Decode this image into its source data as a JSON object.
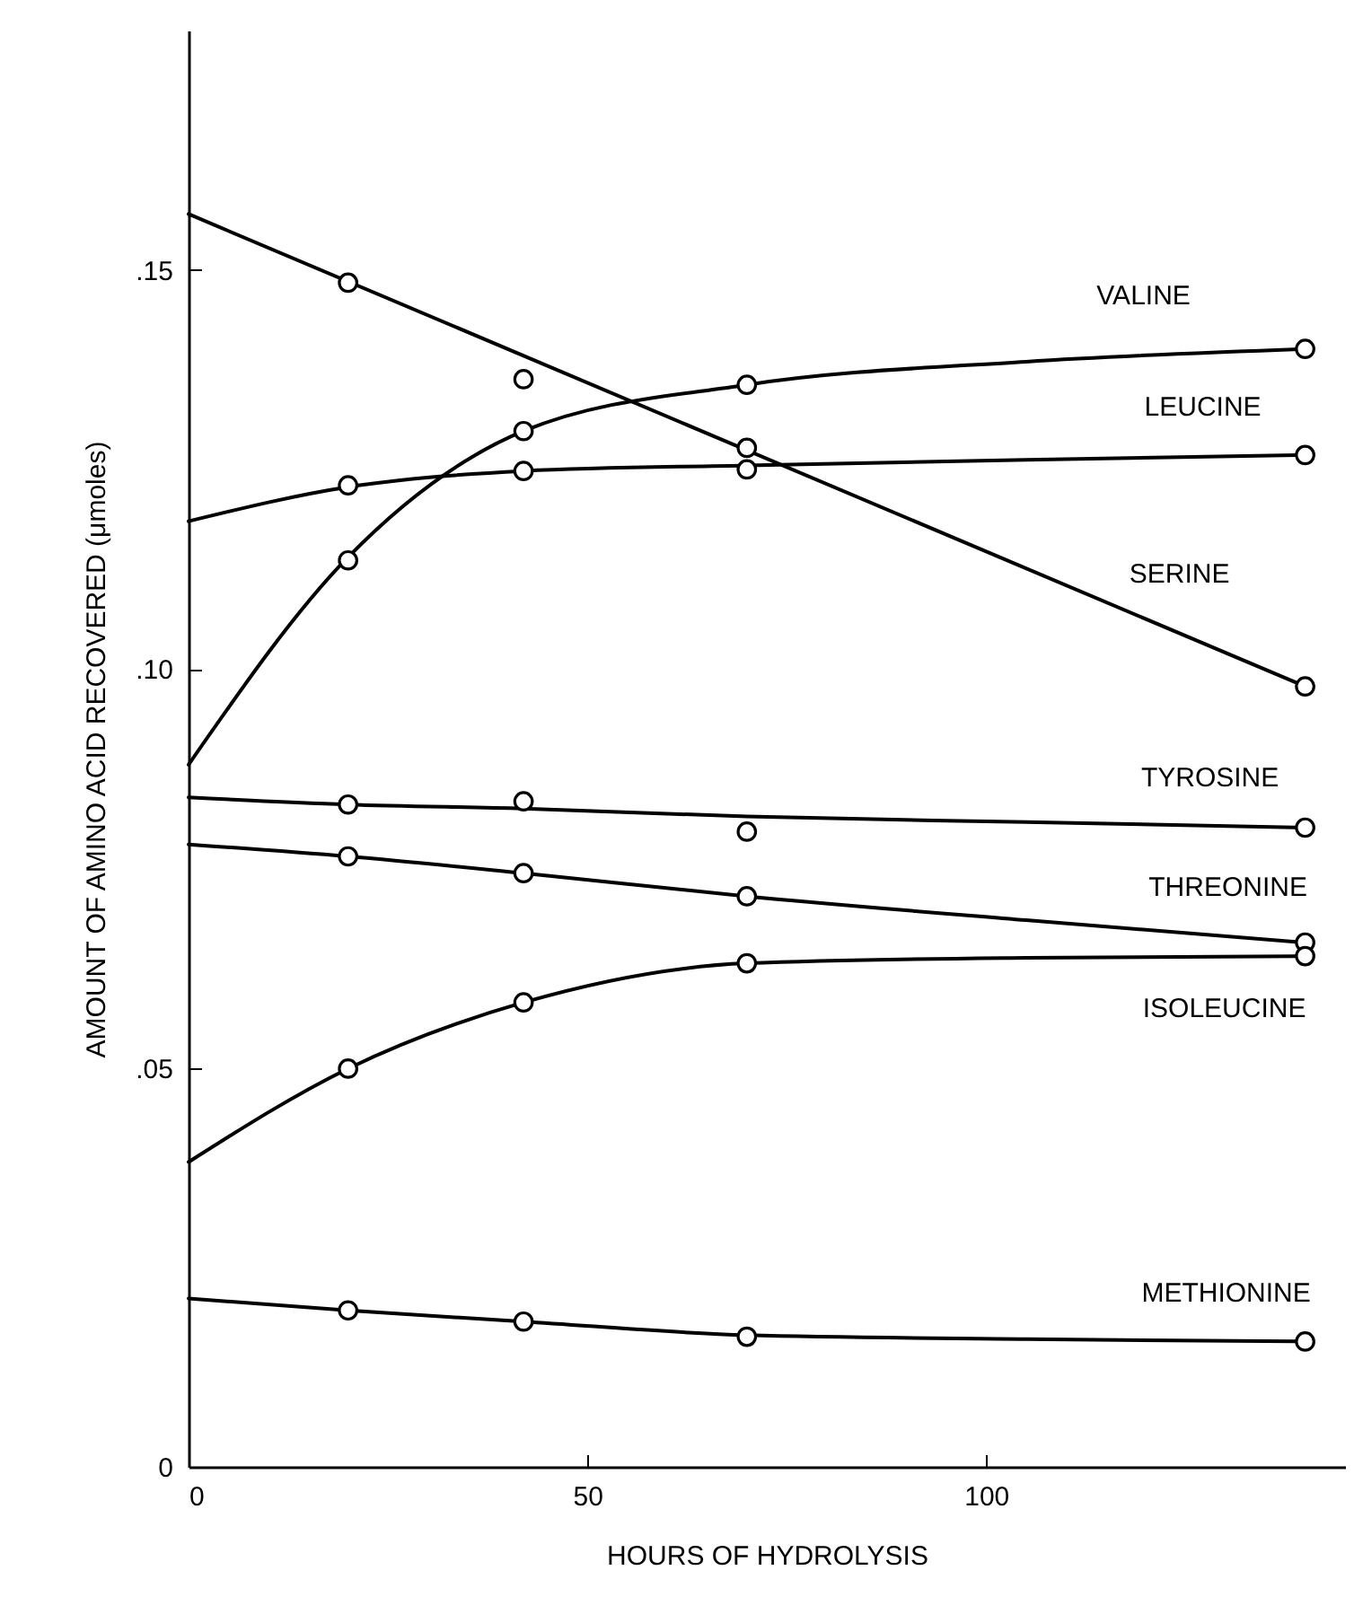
{
  "chart_data": {
    "type": "line",
    "xlabel": "HOURS OF HYDROLYSIS",
    "ylabel": "AMOUNT OF AMINO ACID RECOVERED (μmoles)",
    "xlim": [
      0,
      145
    ],
    "ylim": [
      0,
      0.18
    ],
    "xticks": [
      0,
      50,
      100
    ],
    "yticks": [
      {
        "value": 0,
        "label": "0"
      },
      {
        "value": 0.05,
        "label": ".05"
      },
      {
        "value": 0.1,
        "label": ".10"
      },
      {
        "value": 0.15,
        "label": ".15"
      }
    ],
    "grid": false,
    "line_style": "solid",
    "series": [
      {
        "name": "VALINE",
        "marker": "none",
        "color": "#000000",
        "x": [
          0,
          20,
          42,
          70,
          105,
          140
        ],
        "values": [
          0.088,
          0.114,
          0.1298,
          0.1356,
          0.1385,
          0.1401
        ]
      },
      {
        "type": "scatter",
        "marker": "circle",
        "color": "#000000",
        "x": [
          20,
          42,
          70,
          140
        ],
        "values": [
          0.1136,
          0.1298,
          0.1356,
          0.1401
        ]
      },
      {
        "name": "LEUCINE",
        "marker": "none",
        "color": "#000000",
        "x": [
          0,
          20,
          42,
          70,
          105,
          140
        ],
        "values": [
          0.1185,
          0.1228,
          0.1248,
          0.1255,
          0.1262,
          0.1268
        ]
      },
      {
        "type": "scatter",
        "marker": "circle",
        "color": "#000000",
        "x": [
          20,
          42,
          70,
          140
        ],
        "values": [
          0.123,
          0.1248,
          0.125,
          0.1268
        ]
      },
      {
        "name": "SERINE",
        "marker": "none",
        "color": "#000000",
        "x": [
          0,
          140
        ],
        "values": [
          0.157,
          0.0978
        ]
      },
      {
        "type": "scatter",
        "marker": "circle",
        "color": "#000000",
        "x": [
          20,
          42,
          70,
          140
        ],
        "values": [
          0.1484,
          0.1363,
          0.1277,
          0.0978
        ]
      },
      {
        "name": "TYROSINE",
        "marker": "none",
        "color": "#000000",
        "x": [
          0,
          20,
          42,
          70,
          105,
          140
        ],
        "values": [
          0.0839,
          0.083,
          0.0825,
          0.0815,
          0.0808,
          0.0801
        ]
      },
      {
        "type": "scatter",
        "marker": "circle",
        "color": "#000000",
        "x": [
          20,
          42,
          70,
          140
        ],
        "values": [
          0.083,
          0.0834,
          0.0796,
          0.0801
        ]
      },
      {
        "name": "THREONINE",
        "marker": "none",
        "color": "#000000",
        "x": [
          0,
          20,
          42,
          70,
          105,
          140
        ],
        "values": [
          0.078,
          0.0765,
          0.0744,
          0.0715,
          0.0685,
          0.0657
        ]
      },
      {
        "type": "scatter",
        "marker": "circle",
        "color": "#000000",
        "x": [
          20,
          42,
          70,
          140
        ],
        "values": [
          0.0765,
          0.0744,
          0.0715,
          0.0657
        ]
      },
      {
        "name": "ISOLEUCINE",
        "marker": "none",
        "color": "#000000",
        "x": [
          0,
          20,
          42,
          70,
          105,
          140
        ],
        "values": [
          0.0382,
          0.0499,
          0.0582,
          0.0631,
          0.0638,
          0.064
        ]
      },
      {
        "type": "scatter",
        "marker": "circle",
        "color": "#000000",
        "x": [
          20,
          42,
          70,
          140
        ],
        "values": [
          0.0499,
          0.0582,
          0.0631,
          0.064
        ]
      },
      {
        "name": "METHIONINE",
        "marker": "none",
        "color": "#000000",
        "x": [
          0,
          20,
          42,
          70,
          105,
          140
        ],
        "values": [
          0.0211,
          0.0196,
          0.0182,
          0.0165,
          0.016,
          0.0157
        ]
      },
      {
        "type": "scatter",
        "marker": "circle",
        "color": "#000000",
        "x": [
          20,
          42,
          70,
          140
        ],
        "values": [
          0.0196,
          0.0182,
          0.0163,
          0.0157
        ]
      }
    ]
  }
}
